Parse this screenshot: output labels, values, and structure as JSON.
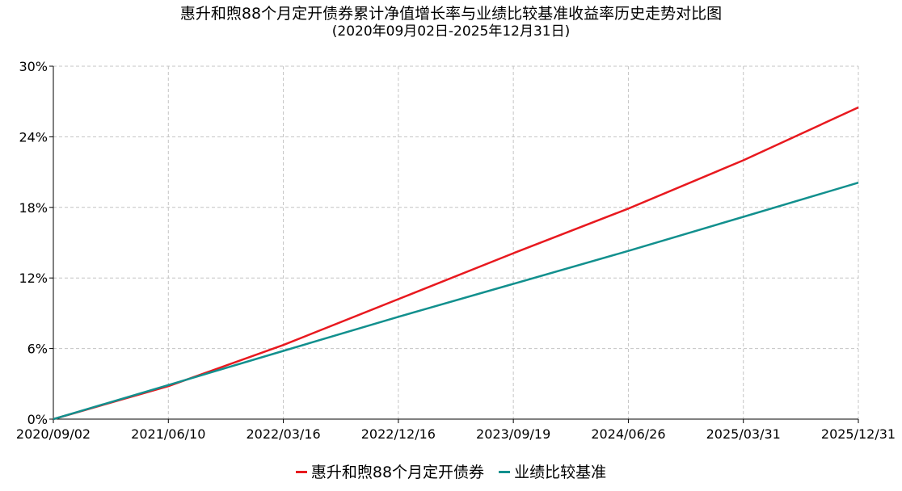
{
  "chart_data": {
    "type": "line",
    "title": "惠升和煦88个月定开债券累计净值增长率与业绩比较基准收益率历史走势对比图",
    "subtitle": "(2020年09月02日-2025年12月31日)",
    "y_ticks": [
      "0%",
      "6%",
      "12%",
      "18%",
      "24%",
      "30%"
    ],
    "ylim": [
      0,
      30
    ],
    "x_ticks": [
      "2020/09/02",
      "2021/06/10",
      "2022/03/16",
      "2022/12/16",
      "2023/09/19",
      "2024/06/26",
      "2025/03/31",
      "2025/12/31"
    ],
    "grid": true,
    "legend_position": "bottom",
    "series": [
      {
        "name": "惠升和煦88个月定开债券",
        "color": "#e8191f",
        "values": [
          0,
          2.8,
          6.3,
          10.2,
          14.1,
          17.9,
          22.0,
          26.5
        ]
      },
      {
        "name": "业绩比较基准",
        "color": "#12908e",
        "values": [
          0,
          2.9,
          5.8,
          8.7,
          11.5,
          14.3,
          17.2,
          20.1
        ]
      }
    ]
  }
}
